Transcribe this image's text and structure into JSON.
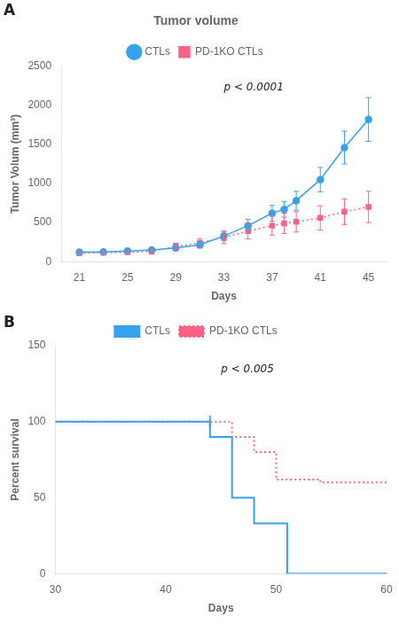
{
  "chart_data": [
    {
      "type": "line",
      "title": "Tumor volume",
      "xlabel": "Days",
      "ylabel": "Tumor Volum (mm³)",
      "xlim": [
        19.5,
        46.5
      ],
      "ylim": [
        0,
        2500
      ],
      "xticks": [
        21,
        25,
        29,
        33,
        37,
        41,
        45
      ],
      "yticks": [
        0,
        500,
        1000,
        1500,
        2000,
        2500
      ],
      "grid": false,
      "legend": "top",
      "annotations": [
        "A",
        "p < 0.0001"
      ],
      "series": [
        {
          "name": "CTLs",
          "marker": "circle",
          "line_style": "solid",
          "x": [
            21,
            23,
            25,
            27,
            29,
            31,
            33,
            35,
            37,
            38,
            39,
            41,
            43,
            45
          ],
          "values": [
            120,
            125,
            135,
            150,
            175,
            215,
            330,
            460,
            620,
            670,
            780,
            1050,
            1460,
            1820
          ],
          "error": [
            15,
            15,
            18,
            20,
            28,
            40,
            60,
            80,
            100,
            100,
            120,
            155,
            210,
            280
          ]
        },
        {
          "name": "PD-1KO CTLs",
          "marker": "square",
          "line_style": "dotted",
          "x": [
            21,
            23,
            25,
            27,
            29,
            31,
            33,
            35,
            37,
            38,
            39,
            41,
            43,
            45
          ],
          "values": [
            110,
            115,
            120,
            130,
            195,
            240,
            310,
            390,
            460,
            490,
            510,
            560,
            640,
            700
          ],
          "error": [
            15,
            15,
            18,
            20,
            40,
            55,
            80,
            100,
            120,
            130,
            130,
            155,
            165,
            200
          ]
        }
      ]
    },
    {
      "type": "step",
      "xlabel": "Days",
      "ylabel": "Percent survival",
      "xlim": [
        30,
        60
      ],
      "ylim": [
        0,
        150
      ],
      "xticks": [
        30,
        40,
        50,
        60
      ],
      "yticks": [
        0,
        50,
        100,
        150
      ],
      "grid": false,
      "legend": "top",
      "annotations": [
        "B",
        "p < 0.005"
      ],
      "series": [
        {
          "name": "CTLs",
          "line_style": "solid",
          "x": [
            30,
            44,
            44,
            46,
            46,
            48,
            48,
            51,
            51,
            60
          ],
          "values": [
            100,
            100,
            90,
            90,
            50,
            50,
            33,
            33,
            0,
            0
          ],
          "censored_x": [
            44
          ],
          "censored_y": [
            100
          ]
        },
        {
          "name": "PD-1KO CTLs",
          "line_style": "dotted",
          "x": [
            30,
            46,
            46,
            48,
            48,
            50,
            50,
            54,
            54,
            60
          ],
          "values": [
            100,
            100,
            90,
            90,
            80,
            80,
            62,
            62,
            60,
            60
          ]
        }
      ]
    }
  ]
}
